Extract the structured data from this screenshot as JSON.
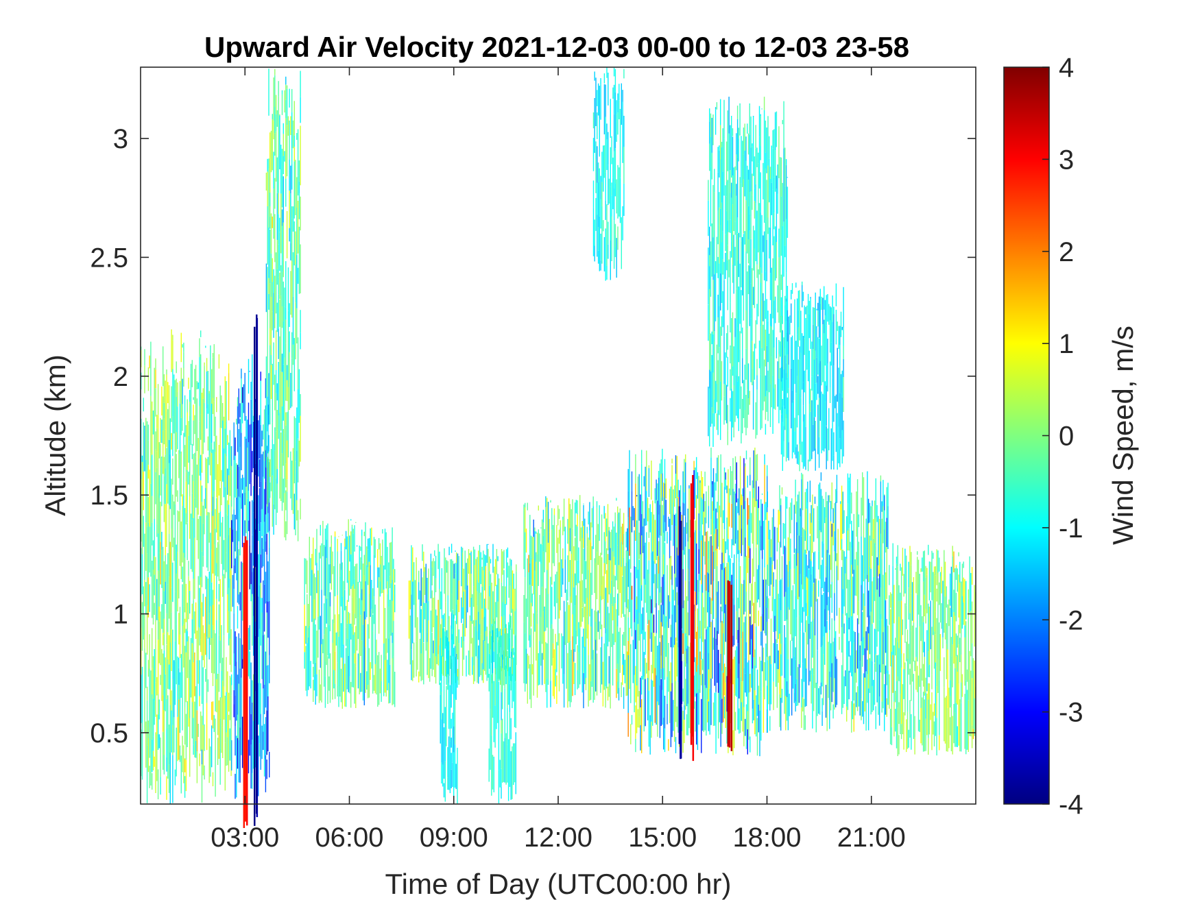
{
  "chart_data": {
    "type": "heatmap",
    "title": "Upward Air Velocity 2021-12-03 00-00 to 12-03 23-58",
    "xlabel": "Time of Day (UTC00:00 hr)",
    "ylabel": "Altitude (km)",
    "xlim": [
      0,
      24
    ],
    "ylim": [
      0.2,
      3.3
    ],
    "xticks": [
      3,
      6,
      9,
      12,
      15,
      18,
      21
    ],
    "xtick_labels": [
      "03:00",
      "06:00",
      "09:00",
      "12:00",
      "15:00",
      "18:00",
      "21:00"
    ],
    "yticks": [
      0.5,
      1,
      1.5,
      2,
      2.5,
      3
    ],
    "ytick_labels": [
      "0.5",
      "1",
      "1.5",
      "2",
      "2.5",
      "3"
    ],
    "colorbar": {
      "label": "Wind Speed, m/s",
      "limits": [
        -4,
        4
      ],
      "ticks": [
        4,
        3,
        2,
        1,
        0,
        -1,
        -2,
        -3,
        -4
      ],
      "tick_labels": [
        "4",
        "3",
        "2",
        "1",
        "0",
        "-1",
        "-2",
        "-3",
        "-4"
      ],
      "colormap": "jet"
    },
    "grid": false,
    "regions": [
      {
        "t0": 0.0,
        "t1": 2.6,
        "zmin": 0.2,
        "zmax": 2.2,
        "mean": -0.1,
        "spread": 0.9
      },
      {
        "t0": 2.6,
        "t1": 3.7,
        "zmin": 0.2,
        "zmax": 2.1,
        "mean": -1.8,
        "spread": 1.2
      },
      {
        "t0": 3.6,
        "t1": 4.6,
        "zmin": 1.3,
        "zmax": 3.3,
        "mean": -0.3,
        "spread": 0.8
      },
      {
        "t0": 4.7,
        "t1": 7.3,
        "zmin": 0.6,
        "zmax": 1.4,
        "mean": -0.4,
        "spread": 0.9
      },
      {
        "t0": 7.7,
        "t1": 10.8,
        "zmin": 0.7,
        "zmax": 1.3,
        "mean": -0.3,
        "spread": 1.0
      },
      {
        "t0": 8.6,
        "t1": 9.1,
        "zmin": 0.2,
        "zmax": 1.0,
        "mean": -1.0,
        "spread": 0.4
      },
      {
        "t0": 10.0,
        "t1": 10.8,
        "zmin": 0.2,
        "zmax": 1.0,
        "mean": -0.8,
        "spread": 0.5
      },
      {
        "t0": 11.0,
        "t1": 14.0,
        "zmin": 0.6,
        "zmax": 1.5,
        "mean": -0.3,
        "spread": 1.1
      },
      {
        "t0": 13.0,
        "t1": 13.9,
        "zmin": 2.4,
        "zmax": 3.3,
        "mean": -0.9,
        "spread": 0.4
      },
      {
        "t0": 14.0,
        "t1": 18.0,
        "zmin": 0.4,
        "zmax": 1.7,
        "mean": -0.6,
        "spread": 1.6
      },
      {
        "t0": 16.3,
        "t1": 18.6,
        "zmin": 1.7,
        "zmax": 3.2,
        "mean": -0.7,
        "spread": 0.6
      },
      {
        "t0": 18.0,
        "t1": 21.5,
        "zmin": 0.5,
        "zmax": 1.6,
        "mean": -0.8,
        "spread": 1.1
      },
      {
        "t0": 18.4,
        "t1": 20.2,
        "zmin": 1.6,
        "zmax": 2.4,
        "mean": -1.1,
        "spread": 0.5
      },
      {
        "t0": 21.5,
        "t1": 24.0,
        "zmin": 0.4,
        "zmax": 1.3,
        "mean": -0.1,
        "spread": 0.8
      }
    ],
    "strong_columns": [
      {
        "t": 3.0,
        "zmin": 0.2,
        "zmax": 1.4,
        "value": 3.0
      },
      {
        "t": 3.3,
        "zmin": 0.2,
        "zmax": 2.3,
        "value": -3.8
      },
      {
        "t": 15.8,
        "zmin": 0.5,
        "zmax": 1.6,
        "value": 3.2
      },
      {
        "t": 16.9,
        "zmin": 0.5,
        "zmax": 1.2,
        "value": 3.5
      },
      {
        "t": 15.5,
        "zmin": 0.5,
        "zmax": 1.5,
        "value": -3.5
      }
    ]
  }
}
